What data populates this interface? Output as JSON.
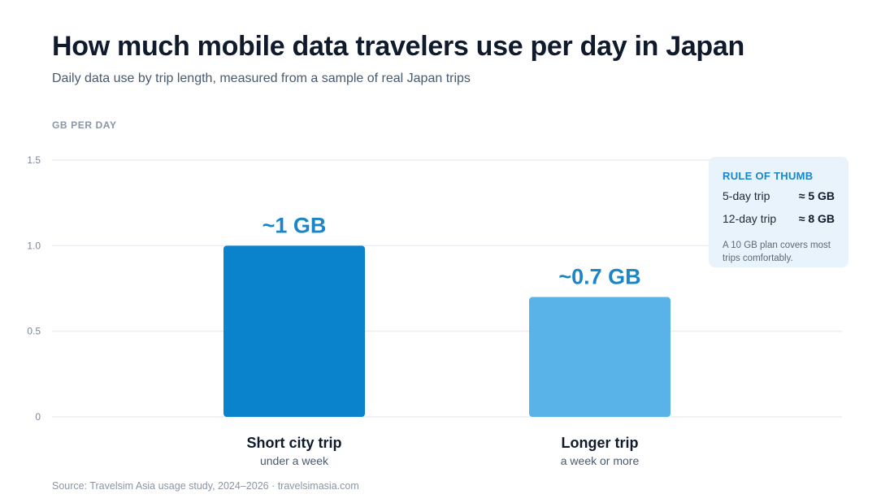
{
  "header": {
    "title": "How much mobile data travelers use per day in Japan",
    "subtitle": "Daily data use by trip length, measured from a sample of real Japan trips"
  },
  "unit_label": "GB PER DAY",
  "rule_of_thumb": {
    "title": "RULE OF THUMB",
    "rows": [
      {
        "label": "5-day trip",
        "value": "≈ 5 GB"
      },
      {
        "label": "12-day trip",
        "value": "≈ 8 GB"
      }
    ],
    "note": "A 10 GB plan covers most trips comfortably."
  },
  "source": "Source: Travelsim Asia usage study, 2024–2026 · travelsimasia.com",
  "colors": {
    "bar_short": "#0a83cc",
    "bar_long": "#5ab3e8",
    "data_label": "#1a86c8",
    "grid": "#e6eaee"
  },
  "chart_data": {
    "type": "bar",
    "categories": [
      "Short city trip",
      "Longer trip"
    ],
    "category_sublabels": [
      "under a week",
      "a week or more"
    ],
    "values": [
      1.0,
      0.7
    ],
    "data_labels": [
      "~1 GB",
      "~0.7 GB"
    ],
    "ylabel": "GB PER DAY",
    "ylim": [
      0,
      1.5
    ],
    "yticks": [
      "0",
      "0.5",
      "1.0",
      "1.5"
    ],
    "ytick_values": [
      0,
      0.5,
      1.0,
      1.5
    ],
    "grid": true
  }
}
